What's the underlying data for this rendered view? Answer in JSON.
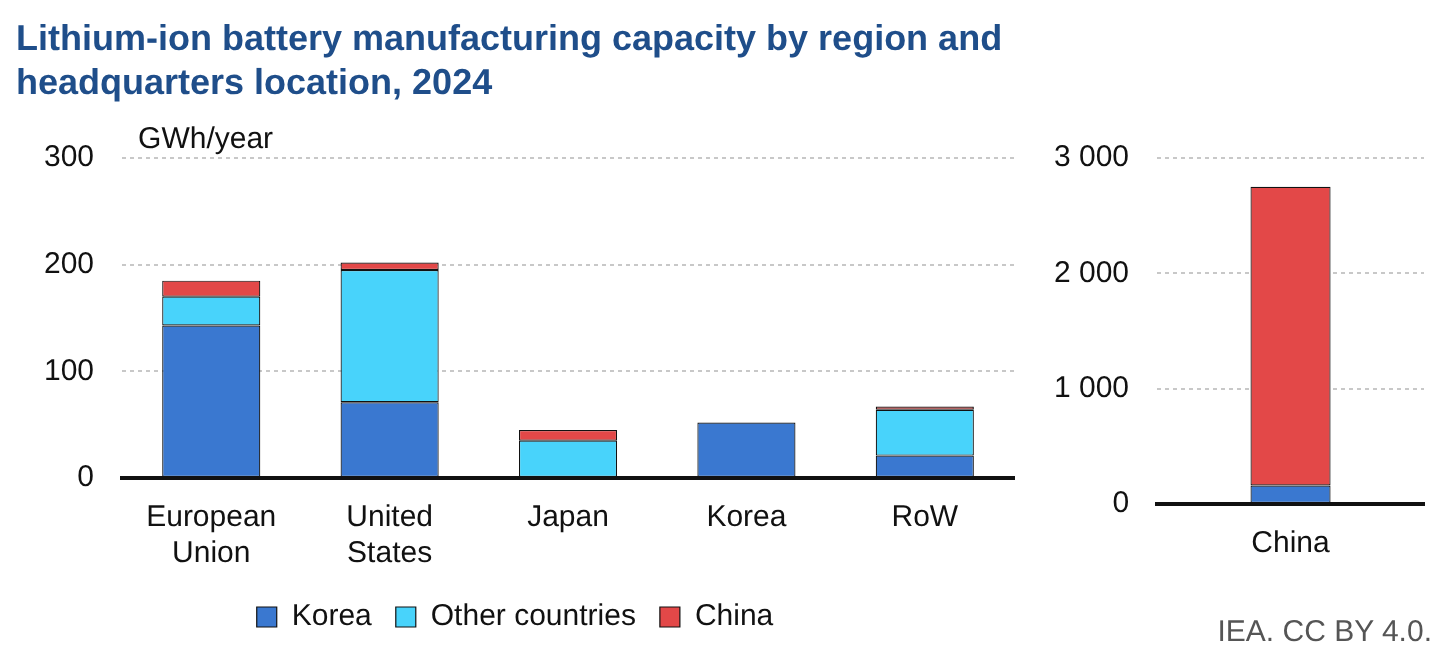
{
  "chart_data": [
    {
      "type": "bar",
      "title": "Lithium-ion battery manufacturing capacity by region and headquarters location, 2024",
      "ylabel": "GWh/year",
      "categories": [
        "European Union",
        "United States",
        "Japan",
        "Korea",
        "RoW"
      ],
      "stacked": true,
      "ylim": [
        0,
        300
      ],
      "yticks": [
        0,
        100,
        200,
        300
      ],
      "grid": "y",
      "legend": "bottom",
      "series": [
        {
          "name": "Korea",
          "color": "#3a78d0",
          "values": [
            143,
            71,
            0,
            52,
            21
          ]
        },
        {
          "name": "Other countries",
          "color": "#48d3fb",
          "values": [
            27,
            124,
            35,
            0,
            43
          ]
        },
        {
          "name": "China",
          "color": "#e34848",
          "values": [
            15,
            7,
            10,
            0,
            3
          ]
        }
      ]
    },
    {
      "type": "bar",
      "categories": [
        "China"
      ],
      "stacked": true,
      "ylim": [
        0,
        3000
      ],
      "yticks": [
        0,
        {
          "value": 1000,
          "label": "1 000"
        },
        {
          "value": 2000,
          "label": "2 000"
        },
        {
          "value": 3000,
          "label": "3 000"
        }
      ],
      "grid": "y",
      "annotations": [
        "IEA. CC BY 4.0."
      ],
      "series": [
        {
          "color": "#3a78d0",
          "values": [
            160
          ]
        },
        {
          "color": "#e34848",
          "values": [
            2590
          ]
        }
      ]
    }
  ]
}
